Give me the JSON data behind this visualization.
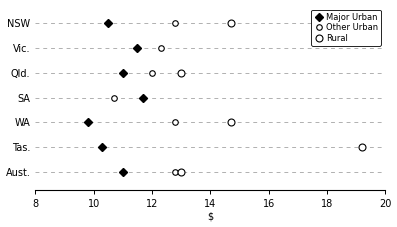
{
  "states": [
    "NSW",
    "Vic.",
    "Qld.",
    "SA",
    "WA",
    "Tas.",
    "Aust."
  ],
  "major_urban": [
    10.5,
    11.5,
    11.0,
    11.7,
    9.8,
    10.3,
    11.0
  ],
  "other_urban": [
    12.8,
    12.3,
    12.0,
    10.7,
    12.8,
    null,
    12.8
  ],
  "rural": [
    14.7,
    null,
    13.0,
    null,
    14.7,
    19.2,
    13.0
  ],
  "xlim": [
    8,
    20
  ],
  "xticks": [
    8,
    10,
    12,
    14,
    16,
    18,
    20
  ],
  "xlabel": "$",
  "legend_labels": [
    "Major Urban",
    "Other Urban",
    "Rural"
  ],
  "bg_color": "#ffffff",
  "grid_color": "#b0b0b0",
  "marker_size_filled": 4,
  "marker_size_other": 4,
  "marker_size_rural": 5,
  "label_fontsize": 7,
  "tick_fontsize": 7,
  "legend_fontsize": 6
}
